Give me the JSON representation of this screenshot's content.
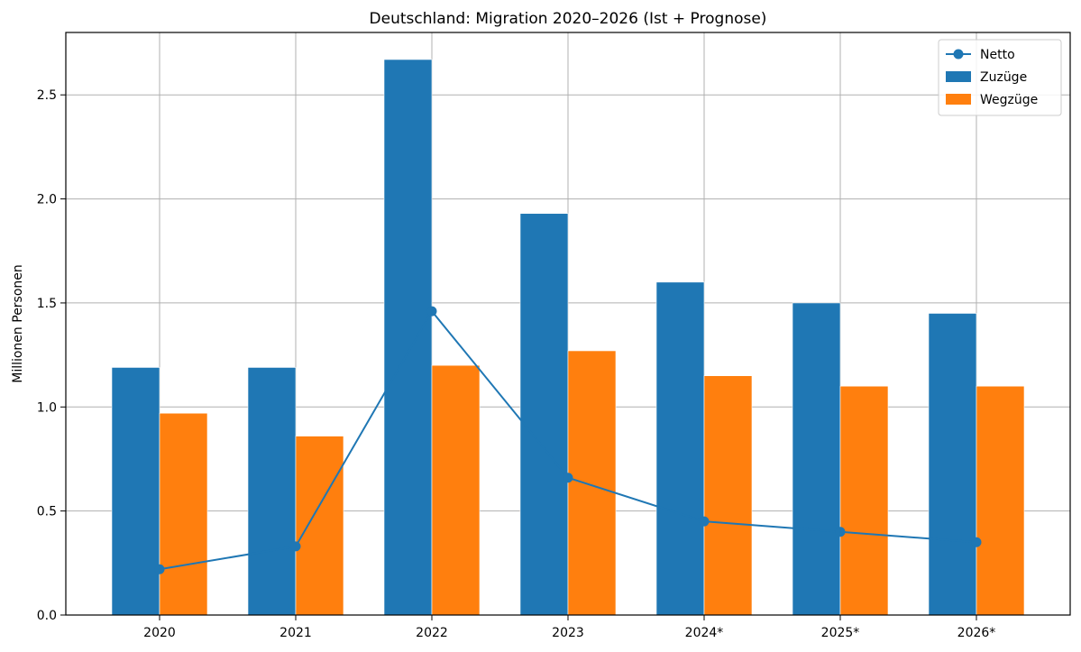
{
  "chart_data": {
    "type": "bar",
    "title": "Deutschland: Migration 2020–2026 (Ist + Prognose)",
    "xlabel": "",
    "ylabel": "Millionen Personen",
    "categories": [
      "2020",
      "2021",
      "2022",
      "2023",
      "2024*",
      "2025*",
      "2026*"
    ],
    "ylim": [
      0,
      2.8
    ],
    "yticks": [
      0.0,
      0.5,
      1.0,
      1.5,
      2.0,
      2.5
    ],
    "ytick_labels": [
      "0.0",
      "0.5",
      "1.0",
      "1.5",
      "2.0",
      "2.5"
    ],
    "grid": true,
    "legend_position": "top-right",
    "series": [
      {
        "name": "Zuzüge",
        "kind": "bar",
        "color": "#1f77b4",
        "values": [
          1.19,
          1.19,
          2.67,
          1.93,
          1.6,
          1.5,
          1.45
        ]
      },
      {
        "name": "Wegzüge",
        "kind": "bar",
        "color": "#ff7f0e",
        "values": [
          0.97,
          0.86,
          1.2,
          1.27,
          1.15,
          1.1,
          1.1
        ]
      },
      {
        "name": "Netto",
        "kind": "line",
        "color": "#1f77b4",
        "values": [
          0.22,
          0.33,
          1.46,
          0.66,
          0.45,
          0.4,
          0.35
        ]
      }
    ]
  }
}
